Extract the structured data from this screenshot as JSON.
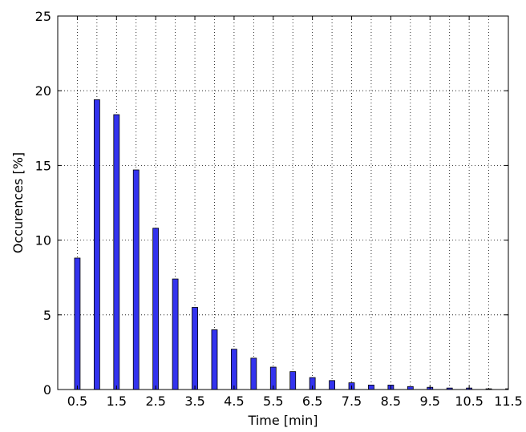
{
  "chart_data": {
    "type": "bar",
    "title": "",
    "xlabel": "Time [min]",
    "ylabel": "Occurences [%]",
    "xlim": [
      0,
      11.5
    ],
    "ylim": [
      0,
      25
    ],
    "grid": true,
    "x": [
      0.5,
      1.0,
      1.5,
      2.0,
      2.5,
      3.0,
      3.5,
      4.0,
      4.5,
      5.0,
      5.5,
      6.0,
      6.5,
      7.0,
      7.5,
      8.0,
      8.5,
      9.0,
      9.5,
      10.0,
      10.5,
      11.0,
      11.5
    ],
    "values": [
      8.8,
      19.4,
      18.4,
      14.7,
      10.8,
      7.4,
      5.5,
      4.0,
      2.7,
      2.1,
      1.5,
      1.2,
      0.8,
      0.6,
      0.45,
      0.3,
      0.3,
      0.2,
      0.15,
      0.1,
      0.1,
      0.05,
      0.05
    ],
    "bar_color": "#3333ee",
    "x_ticks": [
      "0.5",
      "1.5",
      "2.5",
      "3.5",
      "4.5",
      "5.5",
      "6.5",
      "7.5",
      "8.5",
      "9.5",
      "10.5",
      "11.5"
    ],
    "x_tick_values": [
      0.5,
      1.5,
      2.5,
      3.5,
      4.5,
      5.5,
      6.5,
      7.5,
      8.5,
      9.5,
      10.5,
      11.5
    ],
    "y_ticks": [
      "0",
      "5",
      "10",
      "15",
      "20",
      "25"
    ],
    "y_tick_values": [
      0,
      5,
      10,
      15,
      20,
      25
    ]
  }
}
